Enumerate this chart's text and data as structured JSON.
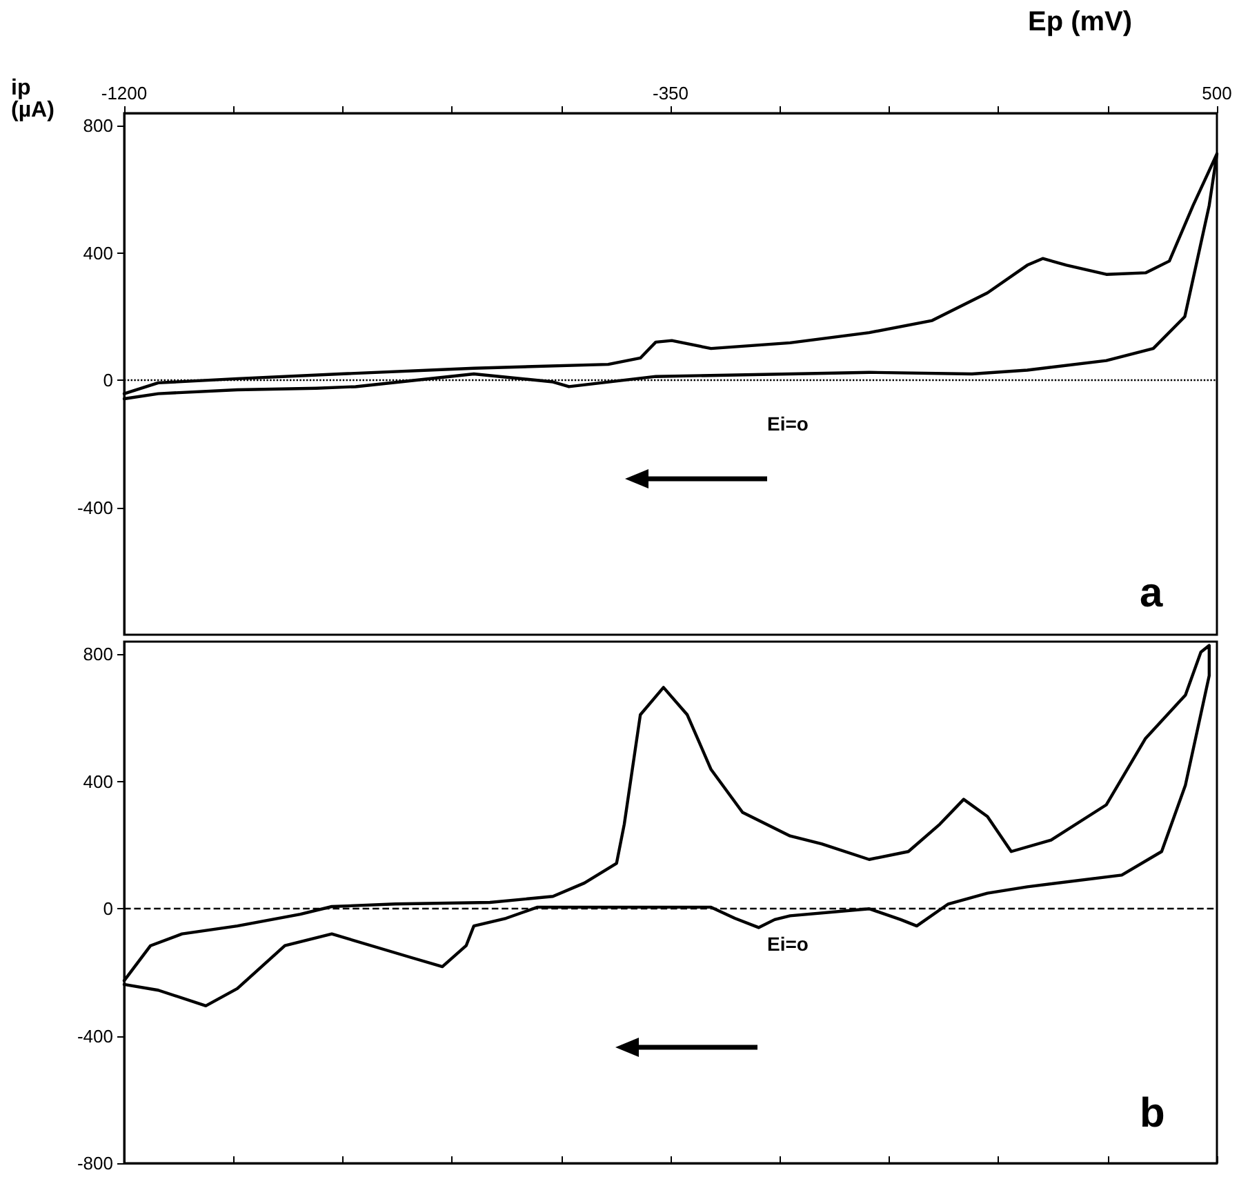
{
  "chart_data": [
    {
      "type": "line",
      "xlabel": "Ep (mV)",
      "ylabel": "ip (µA)",
      "xlim": [
        -1200,
        500
      ],
      "xticks": [
        -1200,
        {
          "value": -1030,
          "label": null
        },
        {
          "value": -860,
          "label": null
        },
        {
          "value": -690,
          "label": null
        },
        {
          "value": -520,
          "label": null
        },
        -350,
        {
          "value": -180,
          "label": null
        },
        {
          "value": -10,
          "label": null
        },
        {
          "value": 160,
          "label": null
        },
        {
          "value": 330,
          "label": null
        },
        500
      ],
      "ylim": [
        -800,
        840
      ],
      "yticks": [
        800,
        400,
        0,
        -400
      ],
      "grid": false,
      "marker": "none",
      "line_style": "solid",
      "ref_lines": [
        {
          "axis": "y",
          "value": 0,
          "line_style": "dotted",
          "color": "#000000"
        }
      ],
      "annotations": [
        "Ei=o",
        "a"
      ],
      "series": [
        {
          "color": "#000000",
          "x": [
            -1200,
            -1147,
            -1024,
            -864,
            -656,
            -447,
            -397,
            -373,
            -348,
            -287,
            -164,
            -41,
            57,
            143,
            205,
            229,
            266,
            328,
            389,
            426,
            463,
            500,
            488,
            450,
            401,
            328,
            205,
            119,
            -41,
            -164,
            -373,
            -508,
            -533,
            -656,
            -840,
            -901,
            -1024,
            -1147,
            -1200
          ],
          "values": [
            -42,
            -8,
            5,
            20,
            38,
            50,
            70,
            120,
            125,
            100,
            118,
            150,
            188,
            275,
            362,
            383,
            362,
            333,
            338,
            375,
            550,
            712,
            550,
            200,
            100,
            62,
            32,
            20,
            25,
            20,
            12,
            -20,
            -5,
            20,
            -20,
            -25,
            -30,
            -42,
            -58
          ]
        }
      ]
    },
    {
      "type": "line",
      "xlim": [
        -1200,
        500
      ],
      "tick_labels": "y",
      "xticks": [
        -1200,
        {
          "value": -1030,
          "label": null
        },
        {
          "value": -860,
          "label": null
        },
        {
          "value": -690,
          "label": null
        },
        {
          "value": -520,
          "label": null
        },
        -350,
        {
          "value": -180,
          "label": null
        },
        {
          "value": -10,
          "label": null
        },
        {
          "value": 160,
          "label": null
        },
        {
          "value": 330,
          "label": null
        },
        500
      ],
      "ylim": [
        -800,
        840
      ],
      "yticks": [
        800,
        400,
        0,
        -400,
        -800
      ],
      "grid": false,
      "marker": "none",
      "line_style": "solid",
      "ref_lines": [
        {
          "axis": "y",
          "value": 0,
          "line_style": "dashed",
          "color": "#000000"
        }
      ],
      "annotations": [
        "Ei=o",
        "b"
      ],
      "series": [
        {
          "color": "#000000",
          "x": [
            -1200,
            -1159,
            -1110,
            -1024,
            -926,
            -877,
            -778,
            -631,
            -533,
            -484,
            -434,
            -422,
            -397,
            -361,
            -324,
            -287,
            -238,
            -164,
            -115,
            -41,
            20,
            69,
            106,
            143,
            180,
            242,
            328,
            389,
            451,
            475,
            488,
            488,
            451,
            414,
            352,
            205,
            143,
            82,
            33,
            8,
            -41,
            -164,
            -188,
            -213,
            -250,
            -287,
            -557,
            -606,
            -656,
            -668,
            -705,
            -754,
            -877,
            -950,
            -1024,
            -1073,
            -1147,
            -1200
          ],
          "values": [
            -226,
            -116,
            -79,
            -54,
            -17,
            7,
            15,
            20,
            39,
            81,
            143,
            266,
            610,
            696,
            610,
            438,
            303,
            229,
            204,
            155,
            180,
            266,
            344,
            290,
            180,
            216,
            327,
            536,
            672,
            807,
            828,
            733,
            389,
            180,
            106,
            69,
            49,
            15,
            -54,
            -34,
            0,
            -22,
            -34,
            -59,
            -30,
            5,
            5,
            -30,
            -54,
            -116,
            -182,
            -153,
            -79,
            -116,
            -251,
            -305,
            -256,
            -238
          ]
        }
      ]
    }
  ]
}
